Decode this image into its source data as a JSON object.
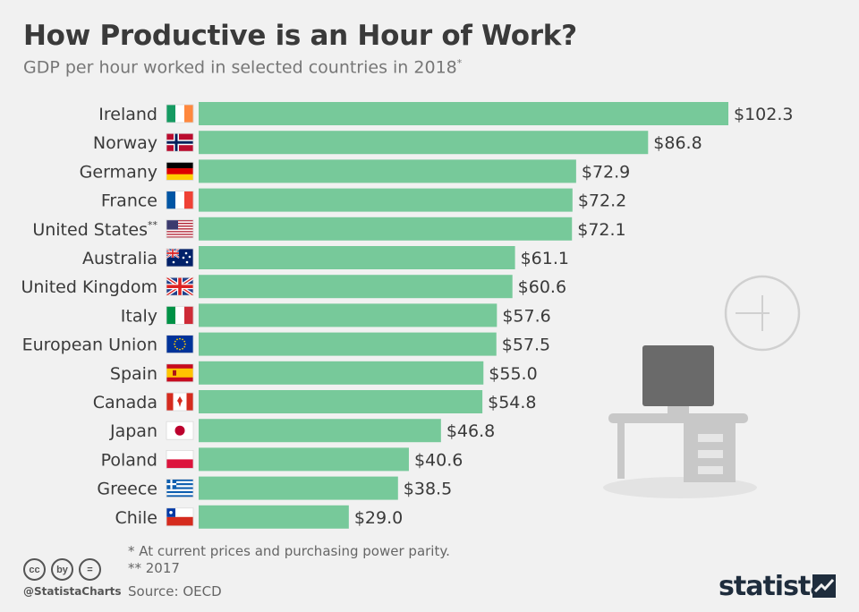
{
  "header": {
    "title": "How Productive is an Hour of Work?",
    "subtitle": "GDP per hour worked in selected countries in 2018",
    "subtitle_mark": "*"
  },
  "chart_data": {
    "type": "bar",
    "orientation": "horizontal",
    "title": "How Productive is an Hour of Work?",
    "subtitle": "GDP per hour worked in selected countries in 2018*",
    "xlabel": "",
    "ylabel": "",
    "xlim": [
      0,
      102.3
    ],
    "grid": false,
    "bar_color": "#77c99a",
    "value_prefix": "$",
    "categories": [
      "Ireland",
      "Norway",
      "Germany",
      "France",
      "United States",
      "Australia",
      "United Kingdom",
      "Italy",
      "European Union",
      "Spain",
      "Canada",
      "Japan",
      "Poland",
      "Greece",
      "Chile"
    ],
    "category_marks": [
      "",
      "",
      "",
      "",
      "**",
      "",
      "",
      "",
      "",
      "",
      "",
      "",
      "",
      "",
      ""
    ],
    "values": [
      102.3,
      86.8,
      72.9,
      72.2,
      72.1,
      61.1,
      60.6,
      57.6,
      57.5,
      55.0,
      54.8,
      46.8,
      40.6,
      38.5,
      29.0
    ],
    "value_labels": [
      "$102.3",
      "$86.8",
      "$72.9",
      "$72.2",
      "$72.1",
      "$61.1",
      "$60.6",
      "$57.6",
      "$57.5",
      "$55.0",
      "$54.8",
      "$46.8",
      "$40.6",
      "$38.5",
      "$29.0"
    ],
    "flags": [
      "ireland-flag-icon",
      "norway-flag-icon",
      "germany-flag-icon",
      "france-flag-icon",
      "united-states-flag-icon",
      "australia-flag-icon",
      "united-kingdom-flag-icon",
      "italy-flag-icon",
      "european-union-flag-icon",
      "spain-flag-icon",
      "canada-flag-icon",
      "japan-flag-icon",
      "poland-flag-icon",
      "greece-flag-icon",
      "chile-flag-icon"
    ]
  },
  "footnotes": {
    "note1": "*    At current prices and purchasing power parity.",
    "note2": "** 2017",
    "source": "Source: OECD"
  },
  "branding": {
    "handle": "@StatistaCharts",
    "logo": "statista",
    "cc_icons": [
      "cc",
      "by",
      "="
    ]
  },
  "colors": {
    "background": "#f1f1f1",
    "bar": "#77c99a",
    "text": "#3a3a3a",
    "illustration": "#c8c8c8"
  }
}
